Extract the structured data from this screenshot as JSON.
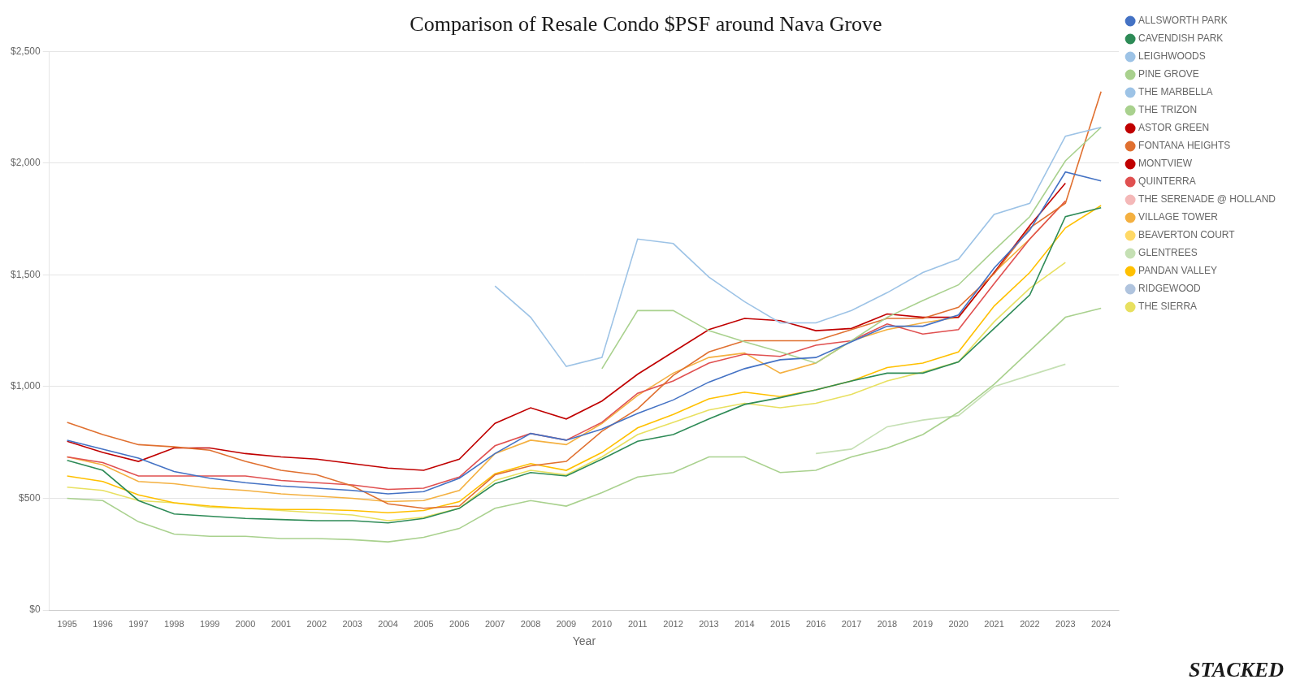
{
  "chart_data": {
    "type": "line",
    "title": "Comparison of Resale Condo $PSF around Nava Grove",
    "x_label": "Year",
    "x": [
      1995,
      1996,
      1997,
      1998,
      1999,
      2000,
      2001,
      2002,
      2003,
      2004,
      2005,
      2006,
      2007,
      2008,
      2009,
      2010,
      2011,
      2012,
      2013,
      2014,
      2015,
      2016,
      2017,
      2018,
      2019,
      2020,
      2021,
      2022,
      2023,
      2024
    ],
    "series": [
      {
        "name": "ALLSWORTH PARK",
        "color": "#4472c4",
        "values": [
          760,
          720,
          680,
          620,
          590,
          570,
          555,
          545,
          535,
          520,
          530,
          590,
          700,
          790,
          760,
          810,
          880,
          940,
          1020,
          1080,
          1120,
          1130,
          1200,
          1270,
          1270,
          1320,
          1530,
          1700,
          1960,
          1920
        ]
      },
      {
        "name": "CAVENDISH PARK",
        "color": "#2e8b57",
        "values": [
          670,
          625,
          490,
          430,
          420,
          410,
          405,
          400,
          400,
          390,
          410,
          455,
          565,
          615,
          600,
          675,
          755,
          785,
          855,
          920,
          950,
          985,
          1025,
          1060,
          1060,
          1110,
          1260,
          1410,
          1760,
          1800
        ]
      },
      {
        "name": "LEIGHWOODS",
        "color": "#9dc3e6",
        "values": [
          null,
          null,
          null,
          null,
          null,
          null,
          null,
          null,
          null,
          null,
          null,
          null,
          null,
          null,
          null,
          null,
          null,
          null,
          null,
          null,
          null,
          null,
          null,
          null,
          null,
          null,
          null,
          null,
          null,
          null
        ]
      },
      {
        "name": "PINE GROVE",
        "color": "#a9d18e",
        "values": [
          500,
          490,
          395,
          340,
          330,
          330,
          320,
          320,
          315,
          305,
          325,
          365,
          455,
          490,
          465,
          525,
          595,
          615,
          685,
          685,
          615,
          625,
          685,
          725,
          785,
          885,
          1010,
          1160,
          1310,
          1350
        ]
      },
      {
        "name": "THE MARBELLA",
        "color": "#9dc3e6",
        "values": [
          null,
          null,
          null,
          null,
          null,
          null,
          null,
          null,
          null,
          null,
          null,
          null,
          1450,
          1310,
          1090,
          1130,
          1660,
          1640,
          1490,
          1380,
          1285,
          1285,
          1340,
          1420,
          1510,
          1570,
          1770,
          1820,
          2120,
          2160
        ]
      },
      {
        "name": "THE TRIZON",
        "color": "#a9d18e",
        "values": [
          null,
          null,
          null,
          null,
          null,
          null,
          null,
          null,
          null,
          null,
          null,
          null,
          null,
          null,
          null,
          1080,
          1340,
          1340,
          1250,
          1200,
          1155,
          1105,
          1205,
          1310,
          1385,
          1455,
          1610,
          1760,
          2010,
          2160
        ]
      },
      {
        "name": "ASTOR GREEN",
        "color": "#c00000",
        "values": [
          null,
          null,
          null,
          null,
          null,
          null,
          null,
          null,
          null,
          null,
          null,
          null,
          null,
          null,
          null,
          null,
          null,
          null,
          null,
          null,
          null,
          null,
          null,
          null,
          null,
          null,
          null,
          null,
          null,
          null
        ]
      },
      {
        "name": "FONTANA HEIGHTS",
        "color": "#e07030",
        "values": [
          840,
          785,
          740,
          730,
          715,
          665,
          625,
          605,
          555,
          475,
          455,
          465,
          605,
          645,
          665,
          800,
          900,
          1050,
          1155,
          1205,
          1205,
          1205,
          1255,
          1305,
          1305,
          1355,
          1505,
          1710,
          1820,
          2320
        ]
      },
      {
        "name": "MONTVIEW",
        "color": "#c00000",
        "values": [
          755,
          705,
          665,
          725,
          725,
          700,
          685,
          675,
          655,
          635,
          625,
          675,
          835,
          905,
          855,
          935,
          1055,
          1155,
          1255,
          1305,
          1295,
          1250,
          1260,
          1325,
          1310,
          1310,
          1510,
          1720,
          1910,
          null
        ]
      },
      {
        "name": "QUINTERRA",
        "color": "#e05050",
        "values": [
          685,
          660,
          600,
          600,
          600,
          600,
          580,
          570,
          560,
          540,
          545,
          595,
          735,
          790,
          760,
          840,
          970,
          1025,
          1105,
          1145,
          1135,
          1185,
          1205,
          1280,
          1235,
          1255,
          1460,
          1660,
          1830,
          null
        ]
      },
      {
        "name": "THE SERENADE @ HOLLAND",
        "color": "#f4b8b8",
        "values": [
          null,
          null,
          null,
          null,
          null,
          null,
          null,
          null,
          null,
          null,
          null,
          null,
          null,
          null,
          null,
          null,
          null,
          null,
          null,
          null,
          null,
          null,
          null,
          null,
          null,
          null,
          null,
          null,
          null,
          null
        ]
      },
      {
        "name": "VILLAGE TOWER",
        "color": "#f4b040",
        "values": [
          685,
          650,
          575,
          565,
          545,
          535,
          520,
          510,
          500,
          485,
          490,
          535,
          700,
          760,
          740,
          835,
          960,
          1060,
          1130,
          1150,
          1060,
          1105,
          1205,
          1255,
          1285,
          1310,
          1510,
          1660,
          1830,
          null
        ]
      },
      {
        "name": "BEAVERTON COURT",
        "color": "#ffd966",
        "values": [
          null,
          null,
          null,
          null,
          null,
          null,
          null,
          null,
          null,
          null,
          null,
          null,
          null,
          null,
          null,
          null,
          null,
          null,
          null,
          null,
          null,
          null,
          null,
          null,
          null,
          null,
          null,
          null,
          null,
          null
        ]
      },
      {
        "name": "GLENTREES",
        "color": "#c5e0b4",
        "values": [
          null,
          null,
          null,
          null,
          null,
          null,
          null,
          null,
          null,
          null,
          null,
          null,
          null,
          null,
          null,
          null,
          null,
          null,
          null,
          null,
          null,
          700,
          720,
          820,
          850,
          870,
          1000,
          1050,
          1100,
          null
        ]
      },
      {
        "name": "PANDAN VALLEY",
        "color": "#ffc000",
        "values": [
          600,
          575,
          515,
          480,
          465,
          455,
          450,
          450,
          445,
          435,
          445,
          485,
          610,
          655,
          625,
          705,
          815,
          875,
          945,
          975,
          955,
          985,
          1025,
          1085,
          1105,
          1155,
          1360,
          1510,
          1710,
          1810
        ]
      },
      {
        "name": "RIDGEWOOD",
        "color": "#b0c4de",
        "values": [
          null,
          null,
          null,
          null,
          null,
          null,
          null,
          null,
          null,
          null,
          null,
          null,
          null,
          null,
          null,
          null,
          null,
          null,
          null,
          null,
          null,
          null,
          null,
          null,
          null,
          null,
          null,
          null,
          null,
          null
        ]
      },
      {
        "name": "THE SIERRA",
        "color": "#e8e060",
        "values": [
          550,
          535,
          490,
          480,
          460,
          455,
          445,
          435,
          425,
          400,
          415,
          455,
          580,
          625,
          605,
          685,
          785,
          840,
          895,
          925,
          905,
          925,
          965,
          1025,
          1065,
          1110,
          1290,
          1440,
          1555,
          null
        ]
      }
    ],
    "xlim": [
      1994.5,
      2024.5
    ],
    "xticks": [
      1995,
      1996,
      1997,
      1998,
      1999,
      2000,
      2001,
      2002,
      2003,
      2004,
      2005,
      2006,
      2007,
      2008,
      2009,
      2010,
      2011,
      2012,
      2013,
      2014,
      2015,
      2016,
      2017,
      2018,
      2019,
      2020,
      2021,
      2022,
      2023,
      2024
    ],
    "ylim": [
      0,
      2500
    ],
    "yticks": [
      {
        "value": 0,
        "label": "$0"
      },
      {
        "value": 500,
        "label": "$500"
      },
      {
        "value": 1000,
        "label": "$1,000"
      },
      {
        "value": 1500,
        "label": "$1,500"
      },
      {
        "value": 2000,
        "label": "$2,000"
      },
      {
        "value": 2500,
        "label": "$2,500"
      }
    ],
    "grid": "y",
    "legend": "right",
    "annotations": [
      "STACKED"
    ]
  }
}
